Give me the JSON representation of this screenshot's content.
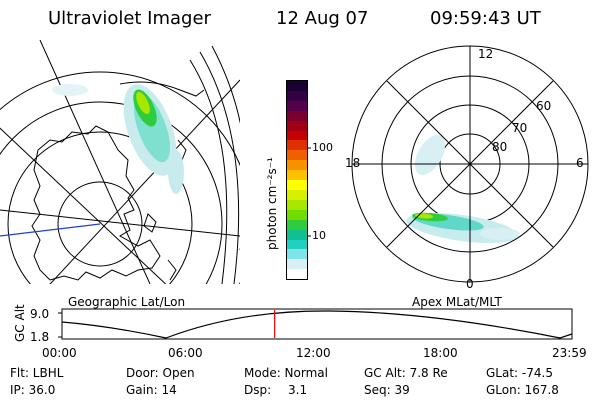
{
  "header": {
    "instrument": "Ultraviolet Imager",
    "date": "12 Aug 07",
    "time": "09:59:43 UT"
  },
  "left_map": {
    "caption": "Geographic Lat/Lon"
  },
  "right_map": {
    "caption": "Apex MLat/MLT",
    "mlt_labels": [
      "12",
      "18",
      "6",
      "0"
    ],
    "lat_labels": [
      "60",
      "70",
      "80"
    ]
  },
  "colorbar": {
    "unit_label": "photon cm⁻²s⁻¹",
    "tick_labels": [
      "100",
      "10"
    ],
    "colors": [
      "#1a0033",
      "#330044",
      "#55004a",
      "#7a0030",
      "#a00015",
      "#c40000",
      "#e03000",
      "#f06000",
      "#f89000",
      "#ffc000",
      "#ffff00",
      "#d8f000",
      "#a8e800",
      "#70dc00",
      "#30cc40",
      "#10c090",
      "#20d0c0",
      "#80e4e8",
      "#d8f0f4",
      "#ffffff"
    ]
  },
  "altitude_plot": {
    "axis_label": "GC Alt",
    "y_ticks": [
      "9.0",
      "1.8"
    ],
    "x_ticks": [
      "00:00",
      "06:00",
      "12:00",
      "18:00",
      "23:59"
    ],
    "current_time_fraction": 0.417
  },
  "info": {
    "filter": "Flt: LBHL",
    "ip": "IP: 36.0",
    "door": "Door: Open",
    "gain": "Gain: 14",
    "mode": "Mode: Normal",
    "dsp_label": "Dsp:",
    "dsp_value": "3.1",
    "gc_alt": "GC Alt: 7.8 Re",
    "seq": "Seq: 39",
    "glat": "GLat: -74.5",
    "glon": "GLon: 167.8"
  }
}
